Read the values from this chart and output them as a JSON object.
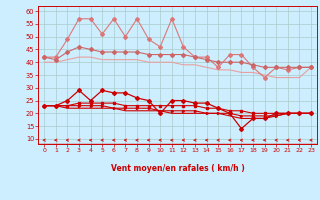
{
  "x": [
    0,
    1,
    2,
    3,
    4,
    5,
    6,
    7,
    8,
    9,
    10,
    11,
    12,
    13,
    14,
    15,
    16,
    17,
    18,
    19,
    20,
    21,
    22,
    23
  ],
  "xlabel": "Vent moyen/en rafales ( km/h )",
  "ylim": [
    8,
    62
  ],
  "xlim": [
    -0.5,
    23.5
  ],
  "yticks": [
    10,
    15,
    20,
    25,
    30,
    35,
    40,
    45,
    50,
    55,
    60
  ],
  "xticks": [
    0,
    1,
    2,
    3,
    4,
    5,
    6,
    7,
    8,
    9,
    10,
    11,
    12,
    13,
    14,
    15,
    16,
    17,
    18,
    19,
    20,
    21,
    22,
    23
  ],
  "bg_color": "#cceeff",
  "grid_color": "#aacccc",
  "line_pink_jagged": [
    42,
    42,
    49,
    57,
    57,
    51,
    57,
    50,
    57,
    49,
    46,
    57,
    46,
    42,
    42,
    38,
    43,
    43,
    38,
    34,
    38,
    37,
    38,
    38
  ],
  "line_pink_mid": [
    42,
    41,
    44,
    46,
    45,
    44,
    44,
    44,
    44,
    43,
    43,
    43,
    43,
    42,
    41,
    40,
    40,
    40,
    39,
    38,
    38,
    38,
    38,
    38
  ],
  "line_pink_lower": [
    40,
    40,
    41,
    42,
    42,
    41,
    41,
    41,
    41,
    40,
    40,
    40,
    39,
    39,
    38,
    37,
    37,
    36,
    36,
    35,
    34,
    34,
    34,
    38
  ],
  "line_red_jagged": [
    23,
    23,
    25,
    29,
    25,
    29,
    28,
    28,
    26,
    25,
    20,
    25,
    25,
    24,
    24,
    22,
    20,
    14,
    18,
    18,
    20,
    20,
    20,
    20
  ],
  "line_red_mid1": [
    23,
    23,
    23,
    24,
    24,
    24,
    24,
    23,
    23,
    23,
    23,
    23,
    23,
    23,
    22,
    22,
    21,
    21,
    20,
    20,
    20,
    20,
    20,
    20
  ],
  "line_red_mid2": [
    23,
    23,
    23,
    23,
    23,
    23,
    22,
    22,
    22,
    22,
    21,
    21,
    21,
    21,
    20,
    20,
    20,
    19,
    19,
    19,
    19,
    20,
    20,
    20
  ],
  "line_red_lower": [
    23,
    23,
    22,
    22,
    22,
    22,
    22,
    21,
    21,
    21,
    21,
    20,
    20,
    20,
    20,
    20,
    19,
    18,
    18,
    18,
    19,
    20,
    20,
    20
  ],
  "pink_jagged_color": "#dd7777",
  "pink_mid_color": "#cc6666",
  "pink_lower_color": "#e8a0a0",
  "red_color": "#cc0000",
  "tick_color": "#cc0000",
  "label_color": "#cc0000",
  "spine_color": "#cc0000",
  "arrow_color": "#cc2222"
}
